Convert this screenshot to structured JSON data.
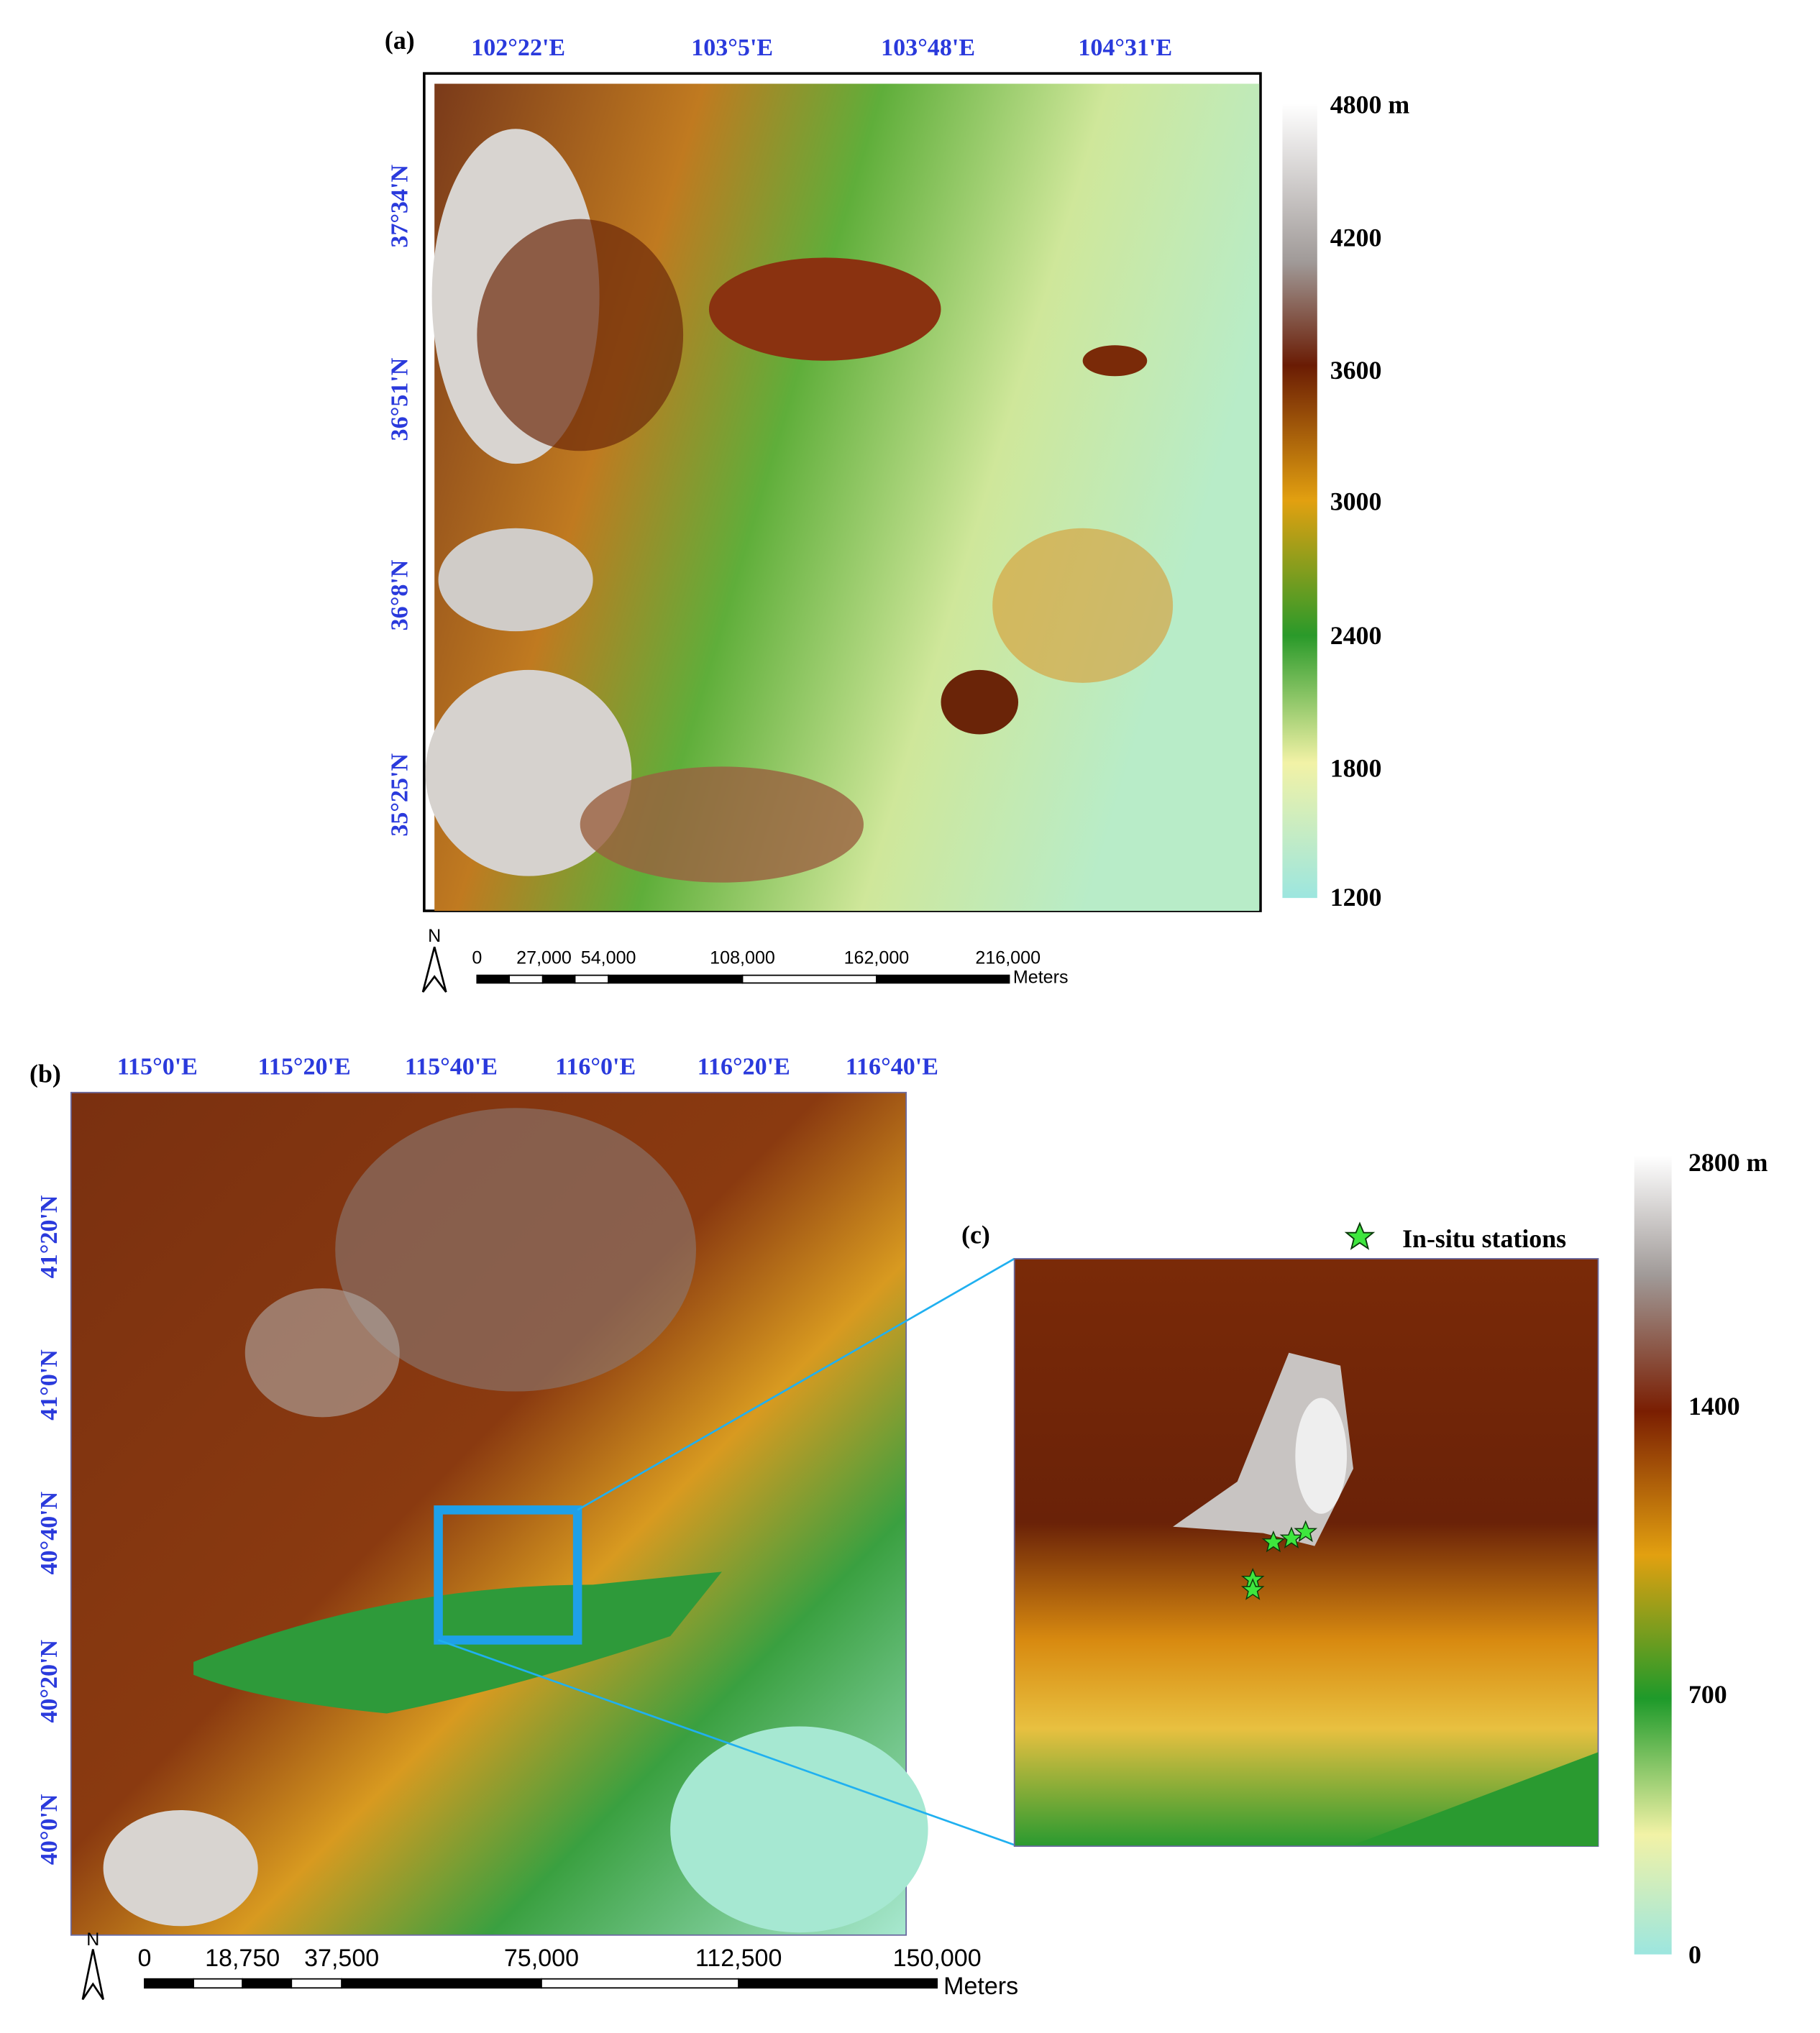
{
  "panel_a": {
    "label": "(a)",
    "lon_labels": [
      "102°22'E",
      "103°5'E",
      "103°48'E",
      "104°31'E"
    ],
    "lat_labels": [
      "37°34'N",
      "36°51'N",
      "36°8'N",
      "35°25'N"
    ],
    "colorbar_labels": [
      "4800 m",
      "4200",
      "3600",
      "3000",
      "2400",
      "1800",
      "1200"
    ],
    "scale_labels": [
      "0",
      "27,000",
      "54,000",
      "108,000",
      "162,000",
      "216,000"
    ],
    "scale_unit": "Meters",
    "north": "N"
  },
  "panel_b": {
    "label": "(b)",
    "lon_labels": [
      "115°0'E",
      "115°20'E",
      "115°40'E",
      "116°0'E",
      "116°20'E",
      "116°40'E"
    ],
    "lat_labels": [
      "41°20'N",
      "41°0'N",
      "40°40'N",
      "40°20'N",
      "40°0'N"
    ],
    "scale_labels": [
      "0",
      "18,750",
      "37,500",
      "75,000",
      "112,500",
      "150,000"
    ],
    "scale_unit": "Meters",
    "north": "N"
  },
  "panel_c": {
    "label": "(c)",
    "legend": "In-situ stations",
    "colorbar_labels": [
      "2800 m",
      "1400",
      "700",
      "0"
    ]
  }
}
